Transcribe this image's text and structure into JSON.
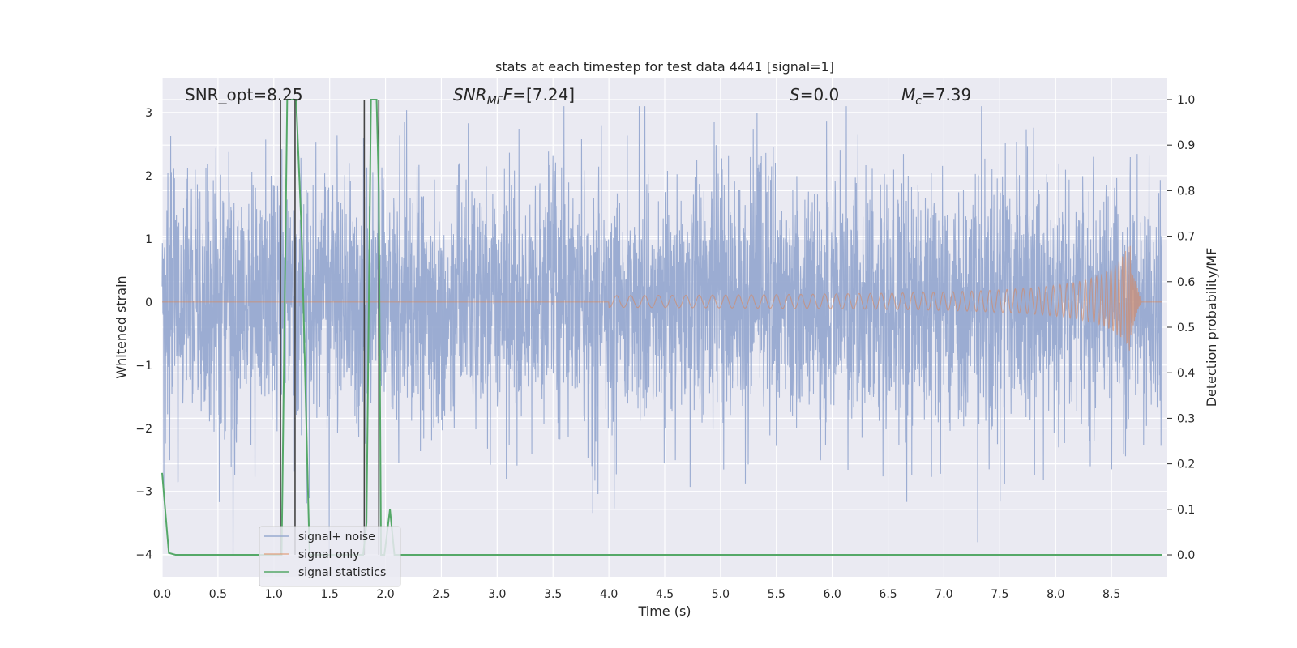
{
  "chart_data": {
    "type": "line",
    "title": "stats at each timestep for test data 4441 [signal=1]",
    "xlabel": "Time (s)",
    "ylabel": "Whitened strain",
    "ylabel_right": "Detection probability/MF",
    "xlim": [
      0.0,
      9.0
    ],
    "ylim": [
      -4.35,
      3.55
    ],
    "ylim_right": [
      -0.048,
      1.048
    ],
    "x_ticks": [
      "0.0",
      "0.5",
      "1.0",
      "1.5",
      "2.0",
      "2.5",
      "3.0",
      "3.5",
      "4.0",
      "4.5",
      "5.0",
      "5.5",
      "6.0",
      "6.5",
      "7.0",
      "7.5",
      "8.0",
      "8.5"
    ],
    "y_ticks": [
      "3",
      "2",
      "1",
      "0",
      "−1",
      "−2",
      "−3",
      "−4"
    ],
    "y_ticks_right": [
      "1.0",
      "0.9",
      "0.8",
      "0.7",
      "0.6",
      "0.5",
      "0.4",
      "0.3",
      "0.2",
      "0.1",
      "0.0"
    ],
    "grid": true,
    "legend_position": "lower-left",
    "annotations": {
      "snr_opt": "SNR_opt=8.25",
      "snr_mf_main": "SNR",
      "snr_mf_sub": "MF",
      "snr_mf_value": "=[7.24]",
      "s_main": "S",
      "s_value": "=0.0",
      "mc_main": "M",
      "mc_sub": "c",
      "mc_value": "=7.39"
    },
    "series": [
      {
        "name": "signal+ noise",
        "color": "#97a9d0",
        "axis": "left",
        "description_values": "whitened noise, approximately Gaussian, amplitude range about -4 to 3.1"
      },
      {
        "name": "signal only",
        "color": "#dd8452",
        "axis": "left",
        "chirp": {
          "start": 4.0,
          "merger": 8.67,
          "end": 9.0,
          "peak_max": 1.0,
          "peak_min": -0.85
        }
      },
      {
        "name": "signal statistics",
        "color": "#55a868",
        "axis": "right",
        "x": [
          0.0,
          0.06,
          0.12,
          1.05,
          1.07,
          1.12,
          1.15,
          1.2,
          1.25,
          1.32,
          1.34,
          1.8,
          1.83,
          1.87,
          1.92,
          1.94,
          1.96,
          1.99,
          2.04,
          2.08,
          8.95
        ],
        "y": [
          0.18,
          0.004,
          0.0,
          0.0,
          0.0,
          1.0,
          1.0,
          1.0,
          0.7,
          0.0,
          0.0,
          0.0,
          0.07,
          1.0,
          1.0,
          0.8,
          0.0,
          0.0,
          0.1,
          0.0,
          0.0
        ]
      }
    ],
    "vertical_lines": [
      {
        "x": 1.06,
        "top": 1.0,
        "bottom": 0.0,
        "color": "#444444"
      },
      {
        "x": 1.19,
        "top": 1.0,
        "bottom": 0.0,
        "color": "#444444"
      },
      {
        "x": 1.81,
        "top": 1.0,
        "bottom": 0.0,
        "color": "#444444"
      },
      {
        "x": 1.94,
        "top": 1.0,
        "bottom": 0.0,
        "color": "#444444"
      }
    ]
  }
}
